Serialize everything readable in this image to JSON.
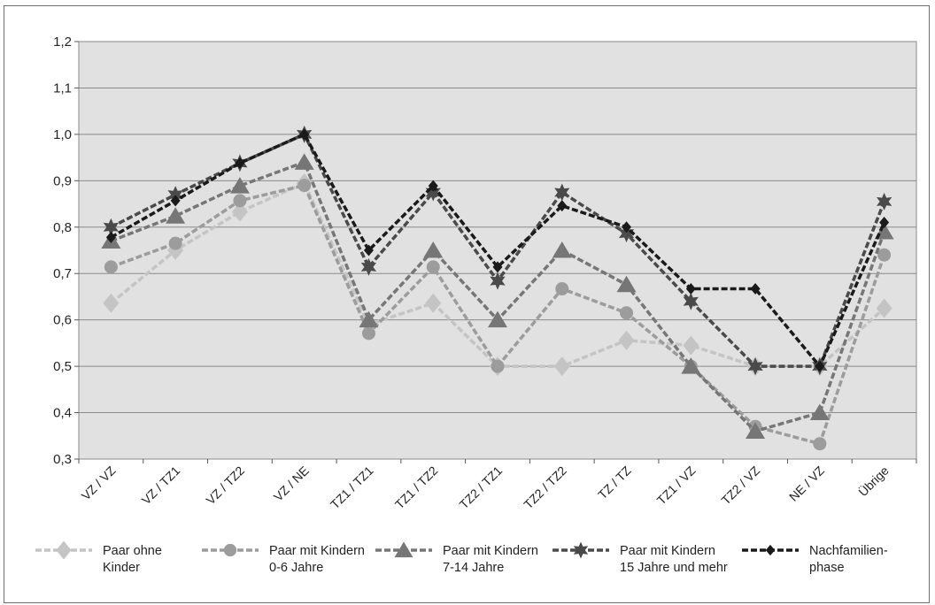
{
  "chart_data": {
    "type": "line",
    "categories": [
      "VZ / VZ",
      "VZ / TZ1",
      "VZ / TZ2",
      "VZ / NE",
      "TZ1 / TZ1",
      "TZ1 / TZ2",
      "TZ2 / TZ1",
      "TZ2 / TZ2",
      "TZ / TZ",
      "TZ1 / VZ",
      "TZ2 / VZ",
      "NE / VZ",
      "Übrige"
    ],
    "ylim": [
      0.3,
      1.2
    ],
    "yticks": [
      "0,3",
      "0,4",
      "0,5",
      "0,6",
      "0,7",
      "0,8",
      "0,9",
      "1,0",
      "1,1",
      "1,2"
    ],
    "grid": true,
    "legend_position": "bottom",
    "series": [
      {
        "name_lines": [
          "Paar ohne",
          "Kinder"
        ],
        "color": "#c4c4c4",
        "marker": "diamond",
        "values": [
          0.636,
          0.75,
          0.833,
          0.895,
          0.59,
          0.636,
          0.5,
          0.5,
          0.556,
          0.545,
          0.5,
          0.5,
          0.625
        ]
      },
      {
        "name_lines": [
          "Paar mit Kindern",
          "0-6 Jahre"
        ],
        "color": "#9c9c9c",
        "marker": "circle",
        "values": [
          0.714,
          0.765,
          0.857,
          0.89,
          0.571,
          0.714,
          0.5,
          0.667,
          0.615,
          0.5,
          0.37,
          0.333,
          0.74
        ]
      },
      {
        "name_lines": [
          "Paar mit Kindern",
          "7-14 Jahre"
        ],
        "color": "#767676",
        "marker": "triangle",
        "values": [
          0.77,
          0.824,
          0.889,
          0.94,
          0.6,
          0.75,
          0.6,
          0.75,
          0.676,
          0.5,
          0.36,
          0.4,
          0.79
        ]
      },
      {
        "name_lines": [
          "Paar mit Kindern",
          "15 Jahre und mehr"
        ],
        "color": "#4a4a4a",
        "marker": "star",
        "values": [
          0.8,
          0.87,
          0.938,
          1.0,
          0.714,
          0.875,
          0.684,
          0.875,
          0.786,
          0.64,
          0.5,
          0.5,
          0.855
        ]
      },
      {
        "name_lines": [
          "Nachfamilien-",
          "phase"
        ],
        "color": "#1a1a1a",
        "marker": "smalldiamond",
        "values": [
          0.778,
          0.857,
          0.938,
          1.0,
          0.75,
          0.889,
          0.714,
          0.846,
          0.8,
          0.667,
          0.667,
          0.5,
          0.81
        ]
      }
    ]
  }
}
